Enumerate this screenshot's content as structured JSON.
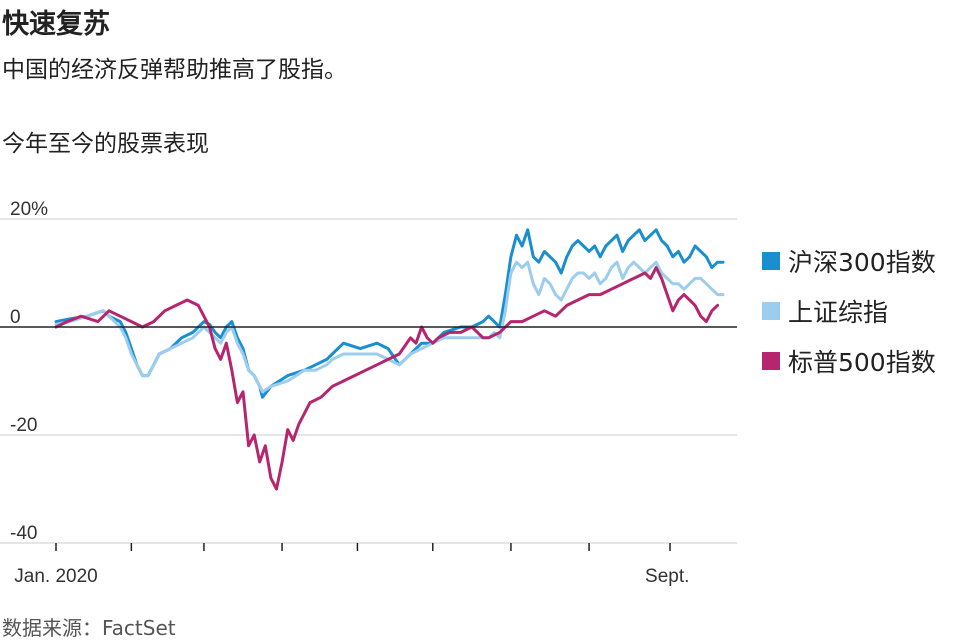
{
  "header": {
    "title": "快速复苏",
    "subtitle": "中国的经济反弹帮助推高了股指。",
    "chart_label": "今年至今的股票表现"
  },
  "footer": {
    "source": "数据来源：FactSet"
  },
  "colors": {
    "csi300": "#1a8fd0",
    "sse": "#9ccdee",
    "sp500": "#b5266e",
    "grid": "#cccccc",
    "zero": "#222222"
  },
  "chart_data": {
    "type": "line",
    "title": "今年至今的股票表现",
    "x_unit": "day of year 2020",
    "xlim": [
      1,
      245
    ],
    "ylim": [
      -40,
      20
    ],
    "yticks": [
      20,
      0,
      -20,
      -40
    ],
    "ytick_labels": [
      "20%",
      "0",
      "-20",
      "-40"
    ],
    "xtick_labels": [
      {
        "x": 1,
        "label": "Jan. 2020"
      },
      {
        "x": 220,
        "label": "Sept."
      }
    ],
    "minor_xticks": [
      1,
      28,
      54,
      82,
      109,
      136,
      164,
      192,
      221
    ],
    "grid": true,
    "legend_position": "right",
    "series": [
      {
        "name": "沪深300指数",
        "color_key": "csi300",
        "points": [
          [
            1,
            1
          ],
          [
            6,
            1.5
          ],
          [
            12,
            2
          ],
          [
            18,
            3
          ],
          [
            20,
            2
          ],
          [
            24,
            1
          ],
          [
            26,
            -1
          ],
          [
            28,
            -4
          ],
          [
            30,
            -7
          ],
          [
            32,
            -9
          ],
          [
            34,
            -9
          ],
          [
            38,
            -5
          ],
          [
            42,
            -4
          ],
          [
            46,
            -2
          ],
          [
            50,
            -1
          ],
          [
            54,
            1
          ],
          [
            56,
            0.5
          ],
          [
            58,
            -1
          ],
          [
            60,
            -2
          ],
          [
            62,
            0
          ],
          [
            64,
            1
          ],
          [
            66,
            -2
          ],
          [
            68,
            -4
          ],
          [
            70,
            -8
          ],
          [
            72,
            -9
          ],
          [
            74,
            -11
          ],
          [
            75,
            -13
          ],
          [
            78,
            -11
          ],
          [
            84,
            -9
          ],
          [
            90,
            -8
          ],
          [
            94,
            -7
          ],
          [
            98,
            -6
          ],
          [
            100,
            -5
          ],
          [
            104,
            -3
          ],
          [
            110,
            -4
          ],
          [
            116,
            -3
          ],
          [
            120,
            -4
          ],
          [
            124,
            -7
          ],
          [
            128,
            -5
          ],
          [
            132,
            -3
          ],
          [
            136,
            -3
          ],
          [
            140,
            -1
          ],
          [
            146,
            0
          ],
          [
            150,
            0
          ],
          [
            154,
            1
          ],
          [
            156,
            2
          ],
          [
            158,
            1
          ],
          [
            160,
            0
          ],
          [
            162,
            6
          ],
          [
            164,
            13
          ],
          [
            166,
            17
          ],
          [
            168,
            15
          ],
          [
            170,
            18
          ],
          [
            172,
            13
          ],
          [
            174,
            12
          ],
          [
            176,
            14
          ],
          [
            178,
            13
          ],
          [
            180,
            12
          ],
          [
            182,
            10
          ],
          [
            184,
            13
          ],
          [
            186,
            15
          ],
          [
            188,
            16
          ],
          [
            190,
            15
          ],
          [
            192,
            14
          ],
          [
            194,
            15
          ],
          [
            196,
            13
          ],
          [
            198,
            15
          ],
          [
            200,
            16
          ],
          [
            202,
            17
          ],
          [
            204,
            14
          ],
          [
            206,
            16
          ],
          [
            208,
            17
          ],
          [
            210,
            18
          ],
          [
            212,
            16
          ],
          [
            214,
            17
          ],
          [
            216,
            18
          ],
          [
            218,
            16
          ],
          [
            220,
            15
          ],
          [
            222,
            13
          ],
          [
            224,
            14
          ],
          [
            226,
            12
          ],
          [
            228,
            13
          ],
          [
            230,
            15
          ],
          [
            232,
            14
          ],
          [
            234,
            13
          ],
          [
            236,
            11
          ],
          [
            238,
            12
          ],
          [
            240,
            12
          ]
        ]
      },
      {
        "name": "上证综指",
        "color_key": "sse",
        "points": [
          [
            1,
            0.5
          ],
          [
            6,
            1
          ],
          [
            12,
            2
          ],
          [
            18,
            3
          ],
          [
            20,
            2
          ],
          [
            24,
            0
          ],
          [
            26,
            -2
          ],
          [
            28,
            -5
          ],
          [
            30,
            -7
          ],
          [
            32,
            -9
          ],
          [
            34,
            -9
          ],
          [
            38,
            -5
          ],
          [
            42,
            -4
          ],
          [
            46,
            -3
          ],
          [
            50,
            -2
          ],
          [
            54,
            0
          ],
          [
            56,
            -1
          ],
          [
            58,
            -2
          ],
          [
            60,
            -3
          ],
          [
            62,
            -1
          ],
          [
            64,
            0
          ],
          [
            66,
            -3
          ],
          [
            68,
            -5
          ],
          [
            70,
            -8
          ],
          [
            72,
            -9
          ],
          [
            74,
            -11
          ],
          [
            75,
            -12
          ],
          [
            78,
            -11
          ],
          [
            84,
            -10
          ],
          [
            90,
            -8
          ],
          [
            94,
            -8
          ],
          [
            98,
            -7
          ],
          [
            100,
            -6
          ],
          [
            104,
            -5
          ],
          [
            110,
            -5
          ],
          [
            116,
            -5
          ],
          [
            120,
            -6
          ],
          [
            124,
            -7
          ],
          [
            128,
            -5
          ],
          [
            132,
            -4
          ],
          [
            136,
            -3
          ],
          [
            140,
            -2
          ],
          [
            146,
            -2
          ],
          [
            150,
            -2
          ],
          [
            154,
            -2
          ],
          [
            156,
            -2
          ],
          [
            158,
            -1
          ],
          [
            160,
            -2
          ],
          [
            162,
            3
          ],
          [
            164,
            10
          ],
          [
            166,
            12
          ],
          [
            168,
            11
          ],
          [
            170,
            12
          ],
          [
            172,
            8
          ],
          [
            174,
            6
          ],
          [
            176,
            9
          ],
          [
            178,
            8
          ],
          [
            180,
            6
          ],
          [
            182,
            5
          ],
          [
            184,
            7
          ],
          [
            186,
            9
          ],
          [
            188,
            10
          ],
          [
            190,
            10
          ],
          [
            192,
            9
          ],
          [
            194,
            10
          ],
          [
            196,
            8
          ],
          [
            198,
            9
          ],
          [
            200,
            11
          ],
          [
            202,
            12
          ],
          [
            204,
            9
          ],
          [
            206,
            11
          ],
          [
            208,
            12
          ],
          [
            210,
            11
          ],
          [
            212,
            10
          ],
          [
            214,
            11
          ],
          [
            216,
            12
          ],
          [
            218,
            10
          ],
          [
            220,
            9
          ],
          [
            222,
            8
          ],
          [
            224,
            8
          ],
          [
            226,
            7
          ],
          [
            228,
            8
          ],
          [
            230,
            9
          ],
          [
            232,
            9
          ],
          [
            234,
            8
          ],
          [
            236,
            7
          ],
          [
            238,
            6
          ],
          [
            240,
            6
          ]
        ]
      },
      {
        "name": "标普500指数",
        "color_key": "sp500",
        "points": [
          [
            1,
            0
          ],
          [
            5,
            1
          ],
          [
            10,
            2
          ],
          [
            16,
            1
          ],
          [
            20,
            3
          ],
          [
            24,
            2
          ],
          [
            28,
            1
          ],
          [
            32,
            0
          ],
          [
            36,
            1
          ],
          [
            40,
            3
          ],
          [
            44,
            4
          ],
          [
            48,
            5
          ],
          [
            52,
            4
          ],
          [
            54,
            2
          ],
          [
            56,
            0
          ],
          [
            58,
            -4
          ],
          [
            60,
            -6
          ],
          [
            62,
            -3
          ],
          [
            64,
            -8
          ],
          [
            66,
            -14
          ],
          [
            68,
            -12
          ],
          [
            70,
            -22
          ],
          [
            72,
            -20
          ],
          [
            74,
            -25
          ],
          [
            76,
            -22
          ],
          [
            78,
            -28
          ],
          [
            80,
            -30
          ],
          [
            82,
            -25
          ],
          [
            84,
            -19
          ],
          [
            86,
            -21
          ],
          [
            88,
            -18
          ],
          [
            90,
            -16
          ],
          [
            92,
            -14
          ],
          [
            96,
            -13
          ],
          [
            100,
            -11
          ],
          [
            104,
            -10
          ],
          [
            108,
            -9
          ],
          [
            112,
            -8
          ],
          [
            116,
            -7
          ],
          [
            120,
            -6
          ],
          [
            124,
            -5
          ],
          [
            128,
            -2
          ],
          [
            130,
            -3
          ],
          [
            132,
            0
          ],
          [
            134,
            -2
          ],
          [
            136,
            -3
          ],
          [
            138,
            -2
          ],
          [
            142,
            -1
          ],
          [
            146,
            -1
          ],
          [
            150,
            0
          ],
          [
            154,
            -2
          ],
          [
            156,
            -2
          ],
          [
            160,
            -1
          ],
          [
            164,
            1
          ],
          [
            168,
            1
          ],
          [
            172,
            2
          ],
          [
            176,
            3
          ],
          [
            180,
            2
          ],
          [
            184,
            4
          ],
          [
            188,
            5
          ],
          [
            192,
            6
          ],
          [
            196,
            6
          ],
          [
            200,
            7
          ],
          [
            204,
            8
          ],
          [
            208,
            9
          ],
          [
            212,
            10
          ],
          [
            214,
            9
          ],
          [
            216,
            11
          ],
          [
            218,
            9
          ],
          [
            220,
            6
          ],
          [
            222,
            3
          ],
          [
            224,
            5
          ],
          [
            226,
            6
          ],
          [
            228,
            5
          ],
          [
            230,
            4
          ],
          [
            232,
            2
          ],
          [
            234,
            1
          ],
          [
            236,
            3
          ],
          [
            238,
            4
          ]
        ]
      }
    ]
  }
}
